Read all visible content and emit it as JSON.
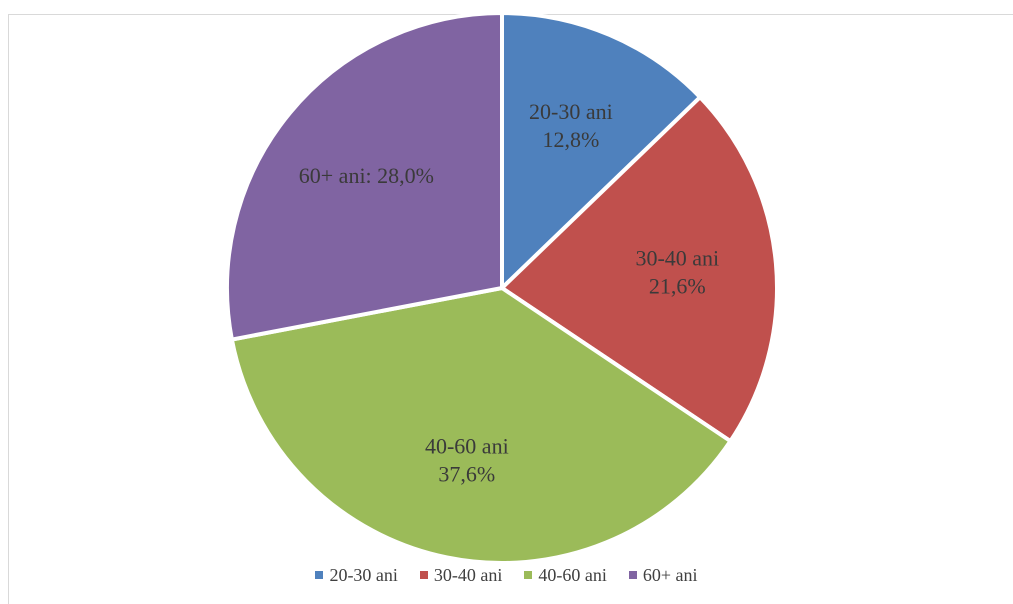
{
  "chart_data": {
    "type": "pie",
    "title": "",
    "categories": [
      "20-30 ani",
      "30-40 ani",
      "40-60 ani",
      "60+ ani"
    ],
    "values": [
      12.8,
      21.6,
      37.6,
      28.0
    ],
    "data_labels": [
      [
        "20-30 ani",
        "12,8%"
      ],
      [
        "30-40 ani",
        "21,6%"
      ],
      [
        "40-60 ani",
        "37,6%"
      ],
      [
        "60+ ani: 28,0%"
      ]
    ],
    "colors": [
      "#4f81bd",
      "#c0504d",
      "#9bbb59",
      "#8064a2"
    ],
    "legend_position": "bottom"
  },
  "legend": {
    "items": [
      {
        "label": "20-30 ani",
        "color": "#4f81bd"
      },
      {
        "label": "30-40 ani",
        "color": "#c0504d"
      },
      {
        "label": "40-60 ani",
        "color": "#9bbb59"
      },
      {
        "label": "60+ ani",
        "color": "#8064a2"
      }
    ]
  }
}
